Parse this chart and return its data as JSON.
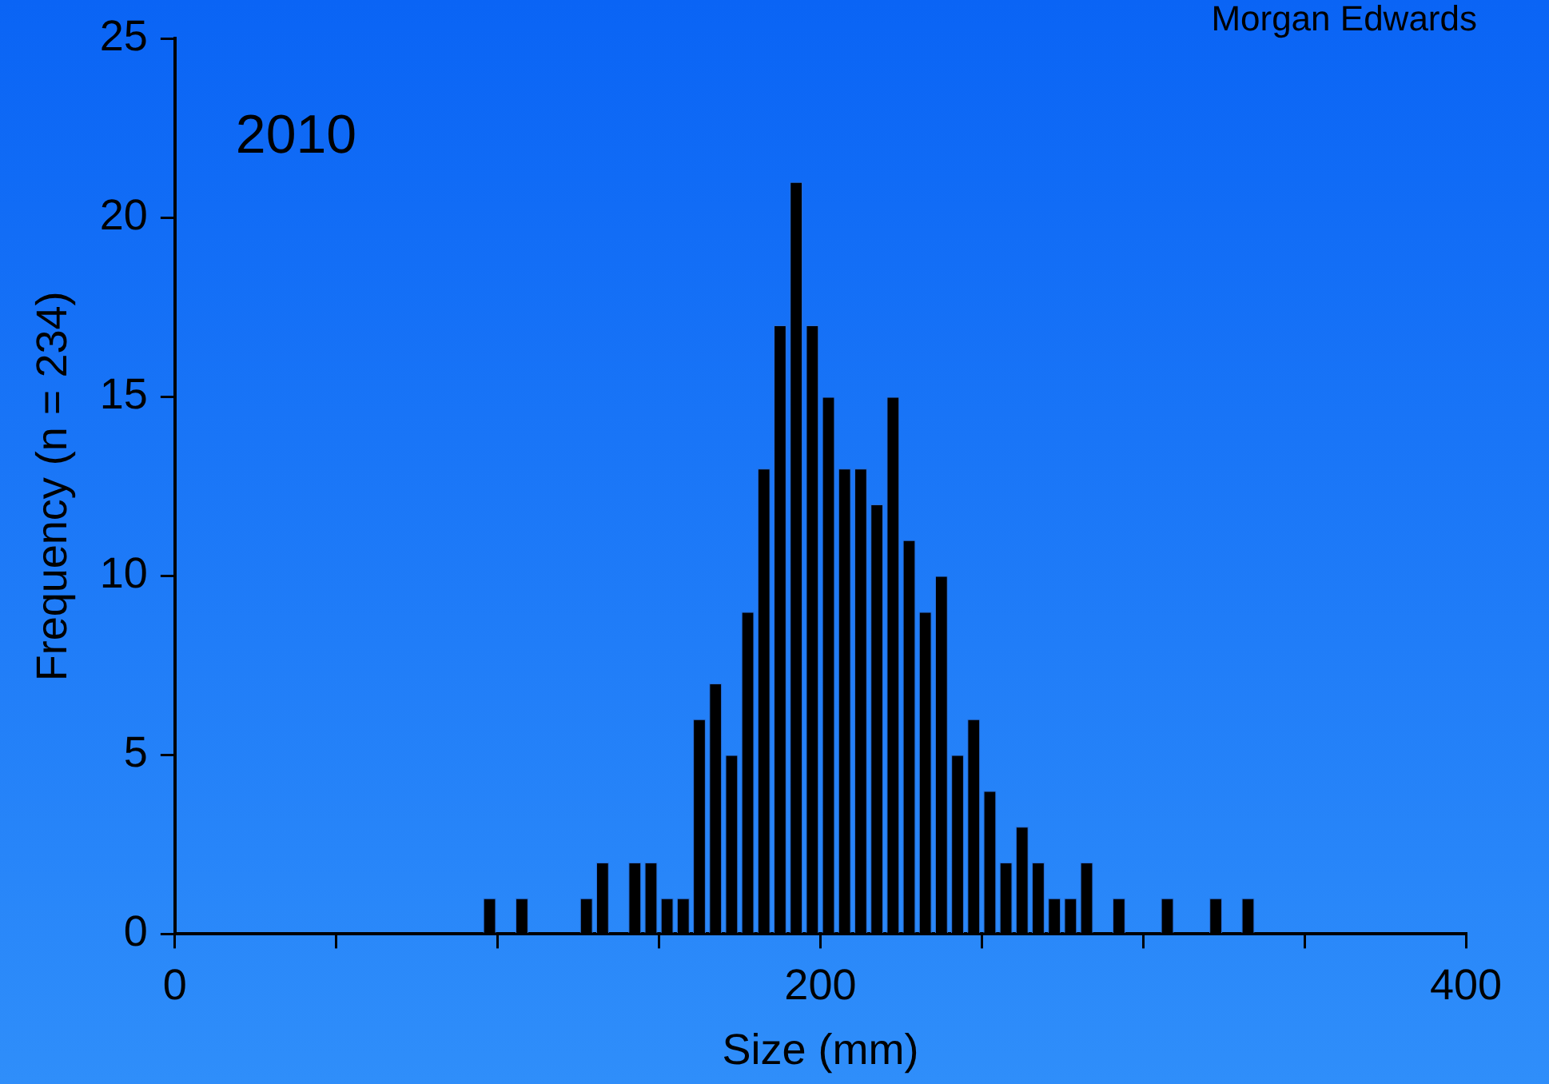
{
  "chart_data": {
    "type": "histogram",
    "xlabel": "Size (mm)",
    "ylabel": "Frequency (n = 234)",
    "annotations": [
      "2010",
      "Morgan Edwards"
    ],
    "bins": [
      95,
      100,
      105,
      110,
      115,
      120,
      125,
      130,
      135,
      140,
      145,
      150,
      155,
      160,
      165,
      170,
      175,
      180,
      185,
      190,
      195,
      200,
      205,
      210,
      215,
      220,
      225,
      230,
      235,
      240,
      245,
      250,
      255,
      260,
      265,
      270,
      275,
      280,
      285,
      290,
      295,
      300,
      305,
      310,
      315,
      320,
      325,
      330,
      335
    ],
    "values": [
      1,
      0,
      1,
      0,
      0,
      0,
      1,
      2,
      0,
      2,
      2,
      1,
      1,
      6,
      7,
      5,
      9,
      13,
      17,
      21,
      17,
      15,
      13,
      13,
      12,
      15,
      11,
      9,
      10,
      5,
      6,
      4,
      2,
      3,
      2,
      1,
      1,
      2,
      0,
      1,
      0,
      0,
      1,
      0,
      0,
      1,
      0,
      1
    ],
    "color": "#000000",
    "xlim": [
      0,
      400
    ],
    "xticks": [
      0,
      {
        "value": 50,
        "label": null
      },
      {
        "value": 100,
        "label": null
      },
      {
        "value": 150,
        "label": null
      },
      200,
      {
        "value": 250,
        "label": null
      },
      {
        "value": 300,
        "label": null
      },
      {
        "value": 350,
        "label": null
      },
      400
    ],
    "ylim": [
      0,
      25
    ],
    "yticks": [
      0,
      5,
      10,
      15,
      20,
      25
    ],
    "grid": false,
    "legend": false
  }
}
